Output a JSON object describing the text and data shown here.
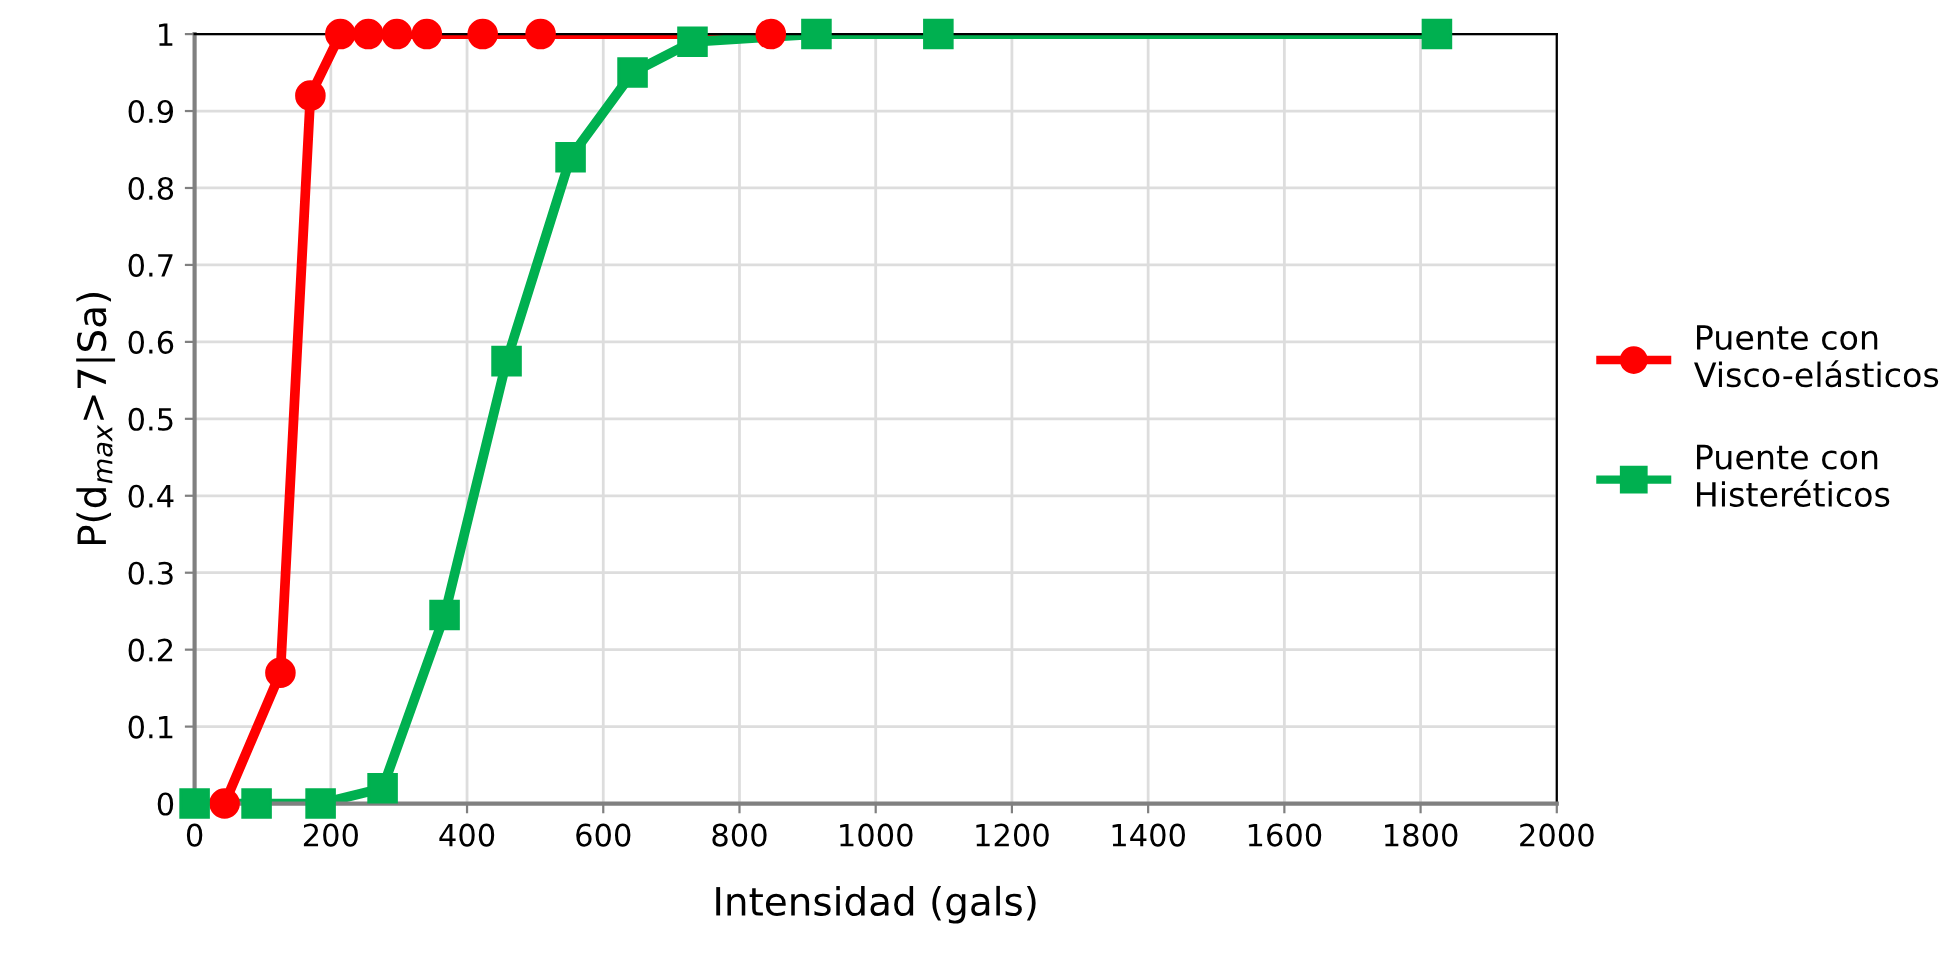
{
  "chart_data": {
    "type": "line",
    "xlabel": "Intensidad (gals)",
    "ylabel": "P(d$_{max}$>7|Sa)",
    "series": [
      {
        "name": "Puente con\nVisco-elásticos",
        "color": "#ff0000",
        "marker": "circle",
        "x": [
          44,
          126,
          170,
          214,
          255,
          297,
          341,
          423,
          508,
          846
        ],
        "values": [
          0,
          0.17,
          0.92,
          1,
          1,
          1,
          1,
          1,
          1,
          1
        ]
      },
      {
        "name": "Puente con\nHisteréticos",
        "color": "#00b050",
        "marker": "square",
        "x": [
          0,
          91,
          185,
          276,
          367,
          458,
          552,
          643,
          731,
          913,
          1092,
          1824
        ],
        "values": [
          0,
          0,
          0,
          0.02,
          0.245,
          0.575,
          0.84,
          0.95,
          0.99,
          1,
          1,
          1
        ]
      }
    ],
    "xlim": [
      0,
      2000
    ],
    "xticks": [
      0,
      200,
      400,
      600,
      800,
      1000,
      1200,
      1400,
      1600,
      1800,
      2000
    ],
    "ylim": [
      0,
      1
    ],
    "yticks": [
      0,
      0.1,
      0.2,
      0.3,
      0.4,
      0.5,
      0.6,
      0.7,
      0.8,
      0.9,
      1
    ],
    "grid": true,
    "legend": "right",
    "line_style": "solid"
  }
}
